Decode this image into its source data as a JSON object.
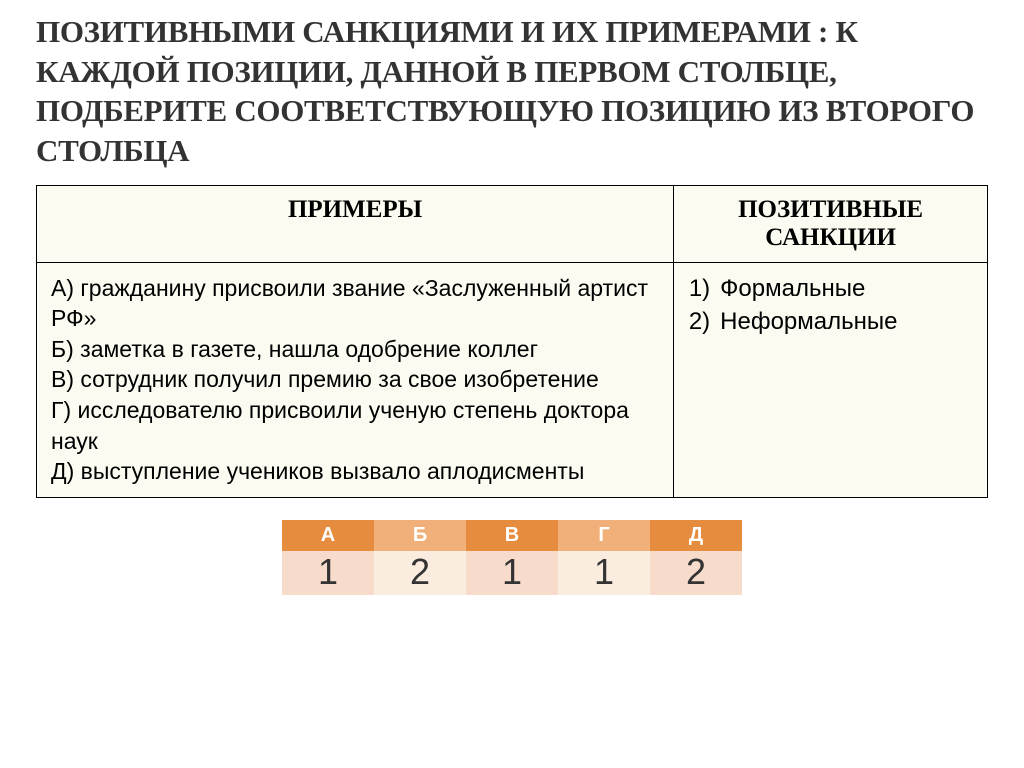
{
  "title": "ПОЗИТИВНЫМИ САНКЦИЯМИ И ИХ ПРИМЕРАМИ : К КАЖДОЙ ПОЗИЦИИ, ДАННОЙ В ПЕРВОМ СТОЛБЦЕ, ПОДБЕРИТЕ СООТВЕТСТВУЮЩУЮ ПОЗИЦИЮ ИЗ ВТОРОГО СТОЛБЦА",
  "table": {
    "header_left": "ПРИМЕРЫ",
    "header_right": "ПОЗИТИВНЫЕ САНКЦИИ",
    "examples": [
      "А) гражданину присвоили звание «Заслуженный артист РФ»",
      "Б) заметка в газете, нашла одобрение коллег",
      "В) сотрудник получил премию за свое изобретение",
      "Г) исследователю присвоили ученую степень доктора наук",
      "Д) выступление учеников вызвало аплодисменты"
    ],
    "sanctions": [
      {
        "num": "1)",
        "label": "Формальные"
      },
      {
        "num": "2)",
        "label": "Неформальные"
      }
    ]
  },
  "answers": {
    "headers": [
      "А",
      "Б",
      "В",
      "Г",
      "Д"
    ],
    "values": [
      "1",
      "2",
      "1",
      "1",
      "2"
    ],
    "header_colors": [
      "#e58c3f",
      "#f1b07a",
      "#e58c3f",
      "#f1b07a",
      "#e58c3f"
    ],
    "cell_colors": [
      "#f8dccb",
      "#fbece0",
      "#f8dccb",
      "#fbece0",
      "#f8dccb"
    ]
  },
  "style": {
    "title_fontsize": 31,
    "table_fontsize": 23,
    "answer_header_fontsize": 20,
    "answer_value_fontsize": 36,
    "bg_color": "#ffffff",
    "table_bg": "#fbfbf2",
    "border_color": "#000000"
  }
}
